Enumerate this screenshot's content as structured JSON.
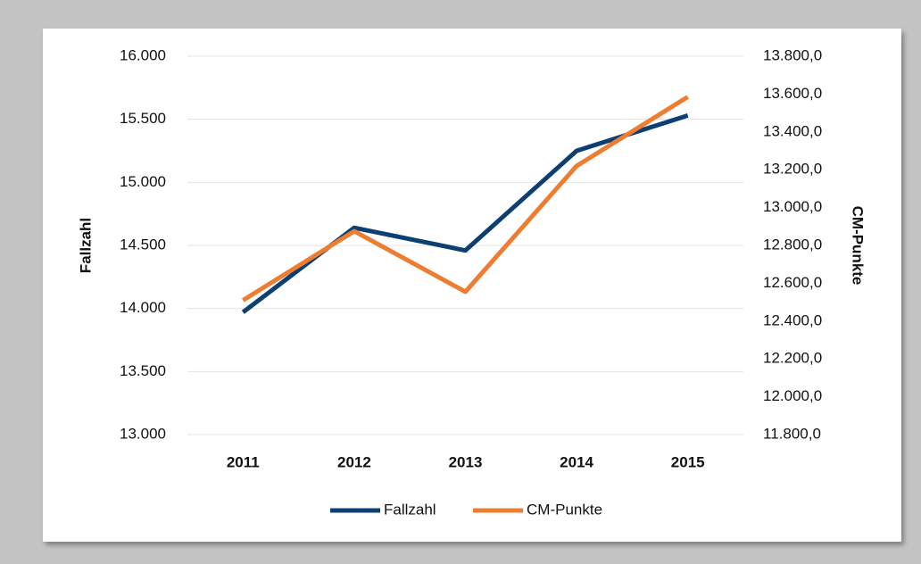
{
  "chart_data": {
    "type": "line",
    "categories": [
      "2011",
      "2012",
      "2013",
      "2014",
      "2015"
    ],
    "series": [
      {
        "name": "Fallzahl",
        "color": "#0e3f72",
        "values": [
          13970,
          14640,
          14460,
          15250,
          15530
        ]
      },
      {
        "name": "CM-Punkte",
        "color": "#ed7d31",
        "axis": "y2",
        "values": [
          12510,
          12875,
          12555,
          13220,
          13585
        ]
      }
    ],
    "ylabel": "Fallzahl",
    "y2label": "CM-Punkte",
    "ylim": [
      13000,
      16000
    ],
    "yticks": [
      {
        "value": 13000,
        "label": "13.000"
      },
      {
        "value": 13500,
        "label": "13.500"
      },
      {
        "value": 14000,
        "label": "14.000"
      },
      {
        "value": 14500,
        "label": "14.500"
      },
      {
        "value": 15000,
        "label": "15.000"
      },
      {
        "value": 15500,
        "label": "15.500"
      },
      {
        "value": 16000,
        "label": "16.000"
      }
    ],
    "y2lim": [
      11800,
      13800
    ],
    "y2ticks": [
      {
        "value": 11800,
        "label": "11.800,0"
      },
      {
        "value": 12000,
        "label": "12.000,0"
      },
      {
        "value": 12200,
        "label": "12.200,0"
      },
      {
        "value": 12400,
        "label": "12.400,0"
      },
      {
        "value": 12600,
        "label": "12.600,0"
      },
      {
        "value": 12800,
        "label": "12.800,0"
      },
      {
        "value": 13000,
        "label": "13.000,0"
      },
      {
        "value": 13200,
        "label": "13.200,0"
      },
      {
        "value": 13400,
        "label": "13.400,0"
      },
      {
        "value": 13600,
        "label": "13.600,0"
      },
      {
        "value": 13800,
        "label": "13.800,0"
      }
    ],
    "grid": true,
    "legend": "bottom"
  }
}
